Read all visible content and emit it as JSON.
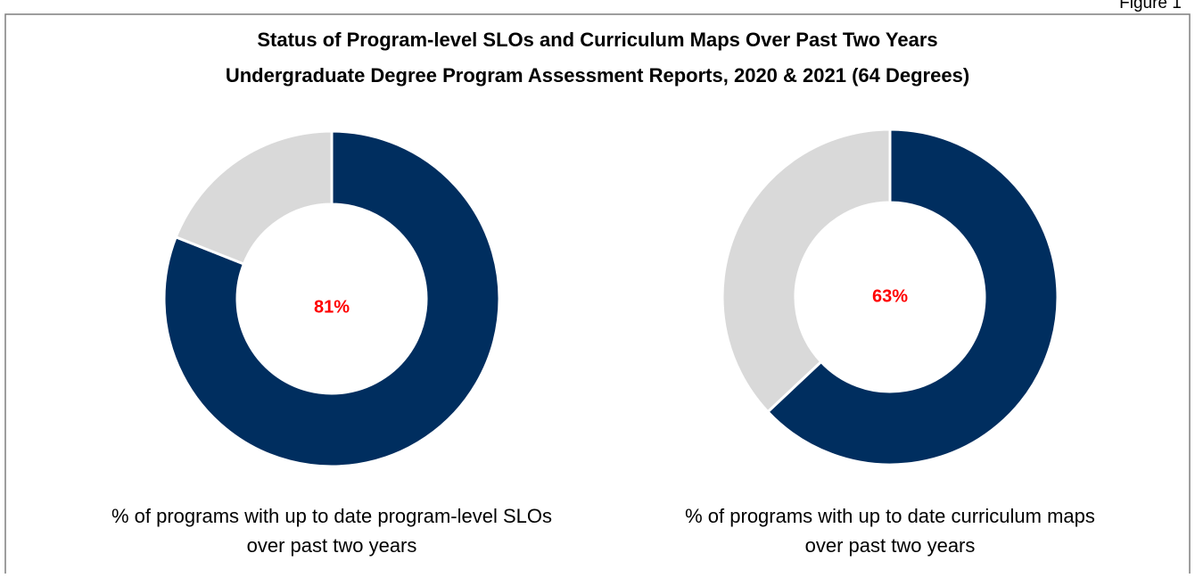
{
  "figure_label": "Figure 1",
  "title": "Status of Program-level SLOs and Curriculum Maps Over Past Two Years",
  "subtitle": "Undergraduate Degree Program Assessment Reports, 2020 & 2021 (64 Degrees)",
  "chart_data": [
    {
      "type": "pie",
      "donut": true,
      "categories": [
        null,
        null
      ],
      "values": [
        81,
        19
      ],
      "value_labels": [
        "81%",
        null
      ],
      "colors": [
        "#002e5f",
        "#d9d9d9"
      ],
      "caption": [
        "% of programs with up to date program-level SLOs",
        "over past two years"
      ]
    },
    {
      "type": "pie",
      "donut": true,
      "categories": [
        null,
        null
      ],
      "values": [
        63,
        37
      ],
      "value_labels": [
        "63%",
        null
      ],
      "colors": [
        "#002e5f",
        "#d9d9d9"
      ],
      "caption": [
        "% of programs with up to date curriculum maps",
        "over past two years"
      ]
    }
  ]
}
